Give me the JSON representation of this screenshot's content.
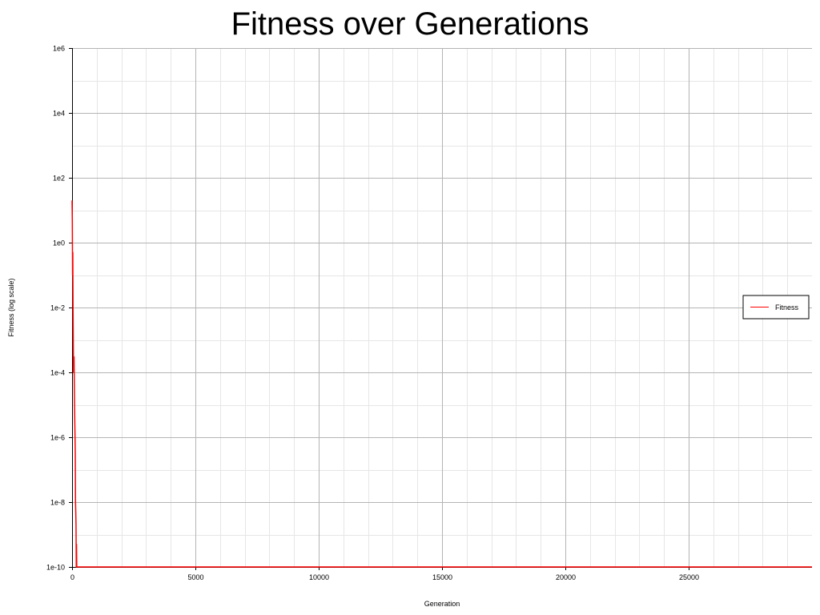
{
  "chart_data": {
    "type": "line",
    "title": "Fitness over Generations",
    "xlabel": "Generation",
    "ylabel": "Fitness (log scale)",
    "xscale": "linear",
    "yscale": "log",
    "xlim": [
      0,
      30000
    ],
    "ylim": [
      1e-10,
      1000000.0
    ],
    "xticks": [
      0,
      5000,
      10000,
      15000,
      20000,
      25000
    ],
    "xtick_labels": [
      "0",
      "5000",
      "10000",
      "15000",
      "20000",
      "25000"
    ],
    "yticks": [
      1e-10,
      1e-08,
      1e-06,
      0.0001,
      0.01,
      1,
      100,
      10000,
      1000000
    ],
    "ytick_labels": [
      "1e-10",
      "1e-8",
      "1e-6",
      "1e-4",
      "1e-2",
      "1e0",
      "1e2",
      "1e4",
      "1e6"
    ],
    "grid": true,
    "legend_position": "right",
    "series": [
      {
        "name": "Fitness",
        "color": "#ff0000",
        "x": [
          0,
          10,
          20,
          30,
          40,
          50,
          60,
          70,
          80,
          90,
          100,
          110,
          120,
          130,
          140,
          150,
          160,
          170,
          180,
          190,
          200,
          30000
        ],
        "y": [
          20,
          5,
          0.1,
          0.5,
          0.01,
          0.001,
          0.0001,
          0.0002,
          0.0003,
          5e-05,
          1e-05,
          3e-06,
          1e-06,
          3e-07,
          1e-08,
          5e-09,
          2e-09,
          1e-10,
          5e-10,
          1e-10,
          1e-10,
          1e-10
        ]
      }
    ]
  }
}
